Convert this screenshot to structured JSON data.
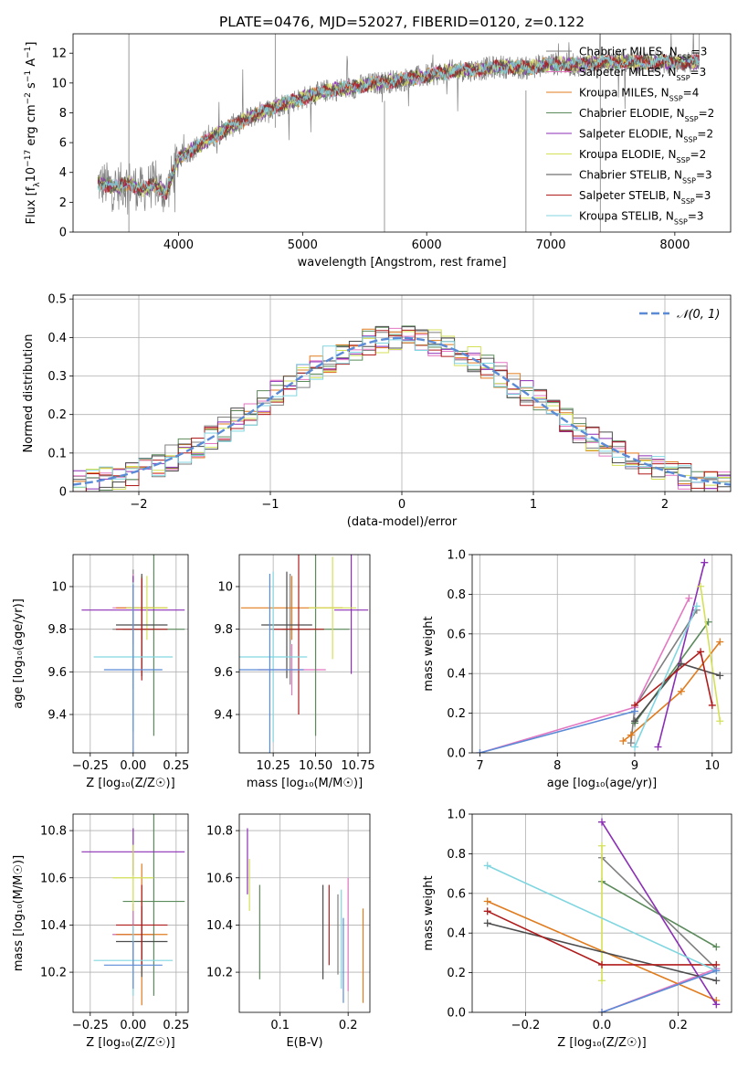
{
  "title": "PLATE=0476, MJD=52027, FIBERID=0120, z=0.122",
  "colors": {
    "chabrier_miles": "#7f7f7f",
    "salpeter_miles": "#e377c2",
    "kroupa_miles": "#e07b1e",
    "chabrier_elodie": "#5b8a5b",
    "salpeter_elodie": "#8b2fb5",
    "kroupa_elodie": "#d4e157",
    "chabrier_stelib": "#4d4d4d",
    "salpeter_stelib": "#b01c1c",
    "kroupa_stelib": "#80d6e0",
    "normal": "#5b8bd6",
    "data": "#808080"
  },
  "chart_data": [
    {
      "id": "spectrum",
      "type": "line",
      "title": "PLATE=0476, MJD=52027, FIBERID=0120, z=0.122",
      "xlabel": "wavelength [Angstrom, rest frame]",
      "ylabel_prefix": "Flux [f",
      "ylabel_mid": "10",
      "ylabel_rest": " erg cm",
      "ylabel_s": " s",
      "ylabel_a": " A",
      "ylabel_end": "]",
      "ylabel_sub": "λ",
      "ylabel_sup1": "−17",
      "ylabel_sup2": "−2",
      "ylabel_sup3": "−1",
      "ylabel_sup4": "−1",
      "xlim": [
        3150,
        8450
      ],
      "ylim": [
        0,
        13.3
      ],
      "xticks": [
        4000,
        5000,
        6000,
        7000,
        8000
      ],
      "yticks": [
        0,
        2,
        4,
        6,
        8,
        10,
        12
      ],
      "grid": false,
      "legend_position": "top-right",
      "legend": [
        {
          "label": "Chabrier MILES, N",
          "sub": "SSP",
          "value": "=3",
          "color": "#7f7f7f"
        },
        {
          "label": "Salpeter MILES, N",
          "sub": "SSP",
          "value": "=3",
          "color": "#e377c2"
        },
        {
          "label": "Kroupa MILES, N",
          "sub": "SSP",
          "value": "=4",
          "color": "#e07b1e"
        },
        {
          "label": "Chabrier ELODIE, N",
          "sub": "SSP",
          "value": "=2",
          "color": "#5b8a5b"
        },
        {
          "label": "Salpeter ELODIE, N",
          "sub": "SSP",
          "value": "=2",
          "color": "#8b2fb5"
        },
        {
          "label": "Kroupa ELODIE, N",
          "sub": "SSP",
          "value": "=2",
          "color": "#d4e157"
        },
        {
          "label": "Chabrier STELIB, N",
          "sub": "SSP",
          "value": "=3",
          "color": "#4d4d4d"
        },
        {
          "label": "Salpeter STELIB, N",
          "sub": "SSP",
          "value": "=3",
          "color": "#b01c1c"
        },
        {
          "label": "Kroupa STELIB, N",
          "sub": "SSP",
          "value": "=3",
          "color": "#80d6e0"
        }
      ],
      "continuum": {
        "x": [
          3350,
          3500,
          3600,
          3700,
          3800,
          3900,
          4000,
          4200,
          4400,
          4600,
          4800,
          5000,
          5200,
          5400,
          5600,
          5800,
          6000,
          6200,
          6400,
          6600,
          6800,
          7000,
          7200,
          7400
        ],
        "y": [
          3.3,
          3.0,
          3.3,
          2.8,
          3.2,
          2.6,
          5.0,
          6.0,
          7.0,
          7.8,
          8.5,
          9.0,
          9.5,
          9.7,
          10.0,
          10.2,
          10.5,
          10.8,
          10.9,
          11.1,
          11.0,
          11.3,
          11.2,
          11.4
        ]
      },
      "data_extent": [
        3350,
        8200
      ],
      "spikes": [
        {
          "x": 3600,
          "y1": 0,
          "y2": 13.3
        },
        {
          "x": 4780,
          "y1": 7.0,
          "y2": 13.3
        },
        {
          "x": 5660,
          "y1": 0,
          "y2": 8.8
        },
        {
          "x": 6800,
          "y1": 0,
          "y2": 9.5
        },
        {
          "x": 7400,
          "y1": 0,
          "y2": 11.0
        }
      ]
    },
    {
      "id": "residuals",
      "type": "bar",
      "xlabel": "(data-model)/error",
      "ylabel": "Normed distribution",
      "xlim": [
        -2.5,
        2.5
      ],
      "ylim": [
        0,
        0.51
      ],
      "xticks": [
        -2,
        -1,
        0,
        1,
        2
      ],
      "yticks": [
        0.0,
        0.1,
        0.2,
        0.3,
        0.4,
        0.5
      ],
      "grid": true,
      "legend_position": "top-right",
      "legend": [
        {
          "label": "𝒩(0, 1)",
          "color": "#5b8bd6"
        }
      ],
      "bin_width": 0.1
    },
    {
      "id": "age_vs_Z",
      "type": "scatter",
      "xlabel": "Z [log₁₀(Z/Z☉)]",
      "ylabel": "age  [log₁₀(age/yr)]",
      "xlim": [
        -0.35,
        0.32
      ],
      "ylim": [
        9.22,
        10.15
      ],
      "xticks": [
        -0.25,
        0.0,
        0.25
      ],
      "xticklabels": [
        "−0.25",
        "0.00",
        "0.25"
      ],
      "yticks": [
        9.4,
        9.6,
        9.8,
        10.0
      ],
      "grid": true,
      "points": [
        {
          "x": 0.0,
          "y": 9.8,
          "xerr": 0.12,
          "yerr": 0.28,
          "color": "#7f7f7f"
        },
        {
          "x": 0.0,
          "y": 9.9,
          "xerr": 0.12,
          "yerr": 0.16,
          "color": "#e377c2"
        },
        {
          "x": 0.05,
          "y": 9.9,
          "xerr": 0.15,
          "yerr": 0.15,
          "color": "#e07b1e"
        },
        {
          "x": 0.12,
          "y": 9.8,
          "xerr": 0.18,
          "yerr": 0.5,
          "color": "#5b8a5b"
        },
        {
          "x": 0.0,
          "y": 9.89,
          "xerr": 0.3,
          "yerr": 0.16,
          "color": "#8b2fb5"
        },
        {
          "x": 0.08,
          "y": 9.9,
          "xerr": 0.12,
          "yerr": 0.15,
          "color": "#d4e157"
        },
        {
          "x": 0.05,
          "y": 9.82,
          "xerr": 0.15,
          "yerr": 0.24,
          "color": "#4d4d4d"
        },
        {
          "x": 0.05,
          "y": 9.8,
          "xerr": 0.15,
          "yerr": 0.24,
          "color": "#b01c1c"
        },
        {
          "x": 0.0,
          "y": 9.67,
          "xerr": 0.23,
          "yerr": 0.35,
          "color": "#80d6e0"
        },
        {
          "x": 0.0,
          "y": 9.61,
          "xerr": 0.17,
          "yerr": 0.4,
          "color": "#5b8bd6"
        }
      ]
    },
    {
      "id": "age_vs_mass",
      "type": "scatter",
      "xlabel": "mass [log₁₀(M/M☉)]",
      "xlim": [
        10.05,
        10.82
      ],
      "ylim": [
        9.22,
        10.15
      ],
      "xticks": [
        10.25,
        10.5,
        10.75
      ],
      "xticklabels": [
        "10.25",
        "10.50",
        "10.75"
      ],
      "yticks": [
        9.4,
        9.6,
        9.8,
        10.0
      ],
      "grid": true,
      "points": [
        {
          "x": 10.35,
          "y": 9.8,
          "xerr": 0.12,
          "yerr": 0.26,
          "color": "#7f7f7f"
        },
        {
          "x": 10.36,
          "y": 9.61,
          "xerr": 0.2,
          "yerr": 0.12,
          "color": "#e377c2"
        },
        {
          "x": 10.36,
          "y": 9.9,
          "xerr": 0.3,
          "yerr": 0.15,
          "color": "#e07b1e"
        },
        {
          "x": 10.5,
          "y": 9.8,
          "xerr": 0.2,
          "yerr": 0.5,
          "color": "#5b8a5b"
        },
        {
          "x": 10.71,
          "y": 9.89,
          "xerr": 0.1,
          "yerr": 0.3,
          "color": "#8b2fb5"
        },
        {
          "x": 10.6,
          "y": 9.9,
          "xerr": 0.14,
          "yerr": 0.24,
          "color": "#d4e157"
        },
        {
          "x": 10.33,
          "y": 9.82,
          "xerr": 0.15,
          "yerr": 0.25,
          "color": "#4d4d4d"
        },
        {
          "x": 10.4,
          "y": 9.8,
          "xerr": 0.15,
          "yerr": 0.4,
          "color": "#b01c1c"
        },
        {
          "x": 10.25,
          "y": 9.67,
          "xerr": 0.2,
          "yerr": 0.4,
          "color": "#80d6e0"
        },
        {
          "x": 10.23,
          "y": 9.61,
          "xerr": 0.2,
          "yerr": 0.45,
          "color": "#5b8bd6"
        }
      ]
    },
    {
      "id": "weight_vs_age",
      "type": "line",
      "xlabel": "age  [log₁₀(age/yr)]",
      "ylabel": "mass weight",
      "xlim": [
        6.9,
        10.25
      ],
      "ylim": [
        0,
        1.0
      ],
      "xticks": [
        7,
        8,
        9,
        10
      ],
      "yticks": [
        0.0,
        0.2,
        0.4,
        0.6,
        0.8,
        1.0
      ],
      "yticklabels": [
        "0.0",
        "0.2",
        "0.4",
        "0.6",
        "0.8",
        "1.0"
      ],
      "grid": true,
      "series": [
        {
          "x": [
            8.95,
            9.0,
            9.8
          ],
          "y": [
            0.05,
            0.23,
            0.72
          ],
          "color": "#7f7f7f"
        },
        {
          "x": [
            7.0,
            9.0,
            9.7
          ],
          "y": [
            0.0,
            0.23,
            0.78
          ],
          "color": "#e377c2"
        },
        {
          "x": [
            8.85,
            8.95,
            9.6,
            10.1
          ],
          "y": [
            0.06,
            0.09,
            0.31,
            0.56
          ],
          "color": "#e07b1e"
        },
        {
          "x": [
            9.0,
            9.95
          ],
          "y": [
            0.15,
            0.66
          ],
          "color": "#5b8a5b"
        },
        {
          "x": [
            9.3,
            9.9
          ],
          "y": [
            0.03,
            0.96
          ],
          "color": "#8b2fb5"
        },
        {
          "x": [
            9.85,
            10.1
          ],
          "y": [
            0.84,
            0.16
          ],
          "color": "#d4e157"
        },
        {
          "x": [
            9.0,
            9.6,
            10.1
          ],
          "y": [
            0.16,
            0.45,
            0.39
          ],
          "color": "#4d4d4d"
        },
        {
          "x": [
            9.0,
            9.85,
            10.0
          ],
          "y": [
            0.24,
            0.51,
            0.24
          ],
          "color": "#b01c1c"
        },
        {
          "x": [
            9.0,
            9.8
          ],
          "y": [
            0.03,
            0.74
          ],
          "color": "#80d6e0"
        },
        {
          "x": [
            7.0,
            9.0
          ],
          "y": [
            0.0,
            0.21
          ],
          "color": "#5b8bd6"
        }
      ]
    },
    {
      "id": "mass_vs_Z",
      "type": "scatter",
      "xlabel": "Z [log₁₀(Z/Z☉)]",
      "ylabel": "mass [log₁₀(M/M☉)]",
      "xlim": [
        -0.35,
        0.32
      ],
      "ylim": [
        10.03,
        10.87
      ],
      "xticks": [
        -0.25,
        0.0,
        0.25
      ],
      "xticklabels": [
        "−0.25",
        "0.00",
        "0.25"
      ],
      "yticks": [
        10.2,
        10.4,
        10.6,
        10.8
      ],
      "grid": true,
      "points": [
        {
          "x": 0.0,
          "y": 10.36,
          "xerr": 0.12,
          "yerr": 0.13,
          "color": "#7f7f7f"
        },
        {
          "x": 0.0,
          "y": 10.36,
          "xerr": 0.12,
          "yerr": 0.13,
          "color": "#e377c2"
        },
        {
          "x": 0.05,
          "y": 10.36,
          "xerr": 0.15,
          "yerr": 0.3,
          "color": "#e07b1e"
        },
        {
          "x": 0.12,
          "y": 10.5,
          "xerr": 0.18,
          "yerr": 0.4,
          "color": "#5b8a5b"
        },
        {
          "x": 0.0,
          "y": 10.71,
          "xerr": 0.3,
          "yerr": 0.1,
          "color": "#8b2fb5"
        },
        {
          "x": 0.0,
          "y": 10.6,
          "xerr": 0.12,
          "yerr": 0.14,
          "color": "#d4e157"
        },
        {
          "x": 0.05,
          "y": 10.33,
          "xerr": 0.15,
          "yerr": 0.15,
          "color": "#4d4d4d"
        },
        {
          "x": 0.05,
          "y": 10.4,
          "xerr": 0.15,
          "yerr": 0.17,
          "color": "#b01c1c"
        },
        {
          "x": 0.0,
          "y": 10.25,
          "xerr": 0.23,
          "yerr": 0.15,
          "color": "#80d6e0"
        },
        {
          "x": 0.0,
          "y": 10.23,
          "xerr": 0.17,
          "yerr": 0.1,
          "color": "#5b8bd6"
        }
      ]
    },
    {
      "id": "mass_vs_ebv",
      "type": "scatter",
      "xlabel": "E(B-V)",
      "xlim": [
        0.04,
        0.232
      ],
      "ylim": [
        10.03,
        10.87
      ],
      "xticks": [
        0.1,
        0.2
      ],
      "xticklabels": [
        "0.1",
        "0.2"
      ],
      "yticks": [
        10.2,
        10.4,
        10.6,
        10.8
      ],
      "grid": true,
      "points": [
        {
          "x": 0.185,
          "y": 10.36,
          "yerr": 0.17,
          "color": "#7f7f7f"
        },
        {
          "x": 0.2,
          "y": 10.36,
          "yerr": 0.24,
          "color": "#e377c2"
        },
        {
          "x": 0.222,
          "y": 10.27,
          "yerr": 0.2,
          "color": "#e07b1e"
        },
        {
          "x": 0.07,
          "y": 10.37,
          "yerr": 0.2,
          "color": "#5b8a5b"
        },
        {
          "x": 0.052,
          "y": 10.67,
          "yerr": 0.14,
          "color": "#8b2fb5"
        },
        {
          "x": 0.055,
          "y": 10.57,
          "yerr": 0.11,
          "color": "#d4e157"
        },
        {
          "x": 0.163,
          "y": 10.37,
          "yerr": 0.2,
          "color": "#4d4d4d"
        },
        {
          "x": 0.172,
          "y": 10.4,
          "yerr": 0.17,
          "color": "#b01c1c"
        },
        {
          "x": 0.19,
          "y": 10.34,
          "yerr": 0.21,
          "color": "#80d6e0"
        },
        {
          "x": 0.193,
          "y": 10.25,
          "yerr": 0.18,
          "color": "#5b8bd6"
        }
      ]
    },
    {
      "id": "weight_vs_Z",
      "type": "line",
      "xlabel": "Z [log₁₀(Z/Z☉)]",
      "ylabel": "mass weight",
      "xlim": [
        -0.34,
        0.34
      ],
      "ylim": [
        0,
        1.0
      ],
      "xticks": [
        -0.2,
        0.0,
        0.2
      ],
      "xticklabels": [
        "−0.2",
        "0.0",
        "0.2"
      ],
      "yticks": [
        0.0,
        0.2,
        0.4,
        0.6,
        0.8,
        1.0
      ],
      "yticklabels": [
        "0.0",
        "0.2",
        "0.4",
        "0.6",
        "0.8",
        "1.0"
      ],
      "grid": true,
      "series": [
        {
          "x": [
            0.0,
            0.3
          ],
          "y": [
            0.78,
            0.22
          ],
          "color": "#7f7f7f"
        },
        {
          "x": [
            0.0,
            0.3
          ],
          "y": [
            0.0,
            0.22
          ],
          "color": "#e377c2"
        },
        {
          "x": [
            -0.3,
            0.3
          ],
          "y": [
            0.56,
            0.06
          ],
          "color": "#e07b1e"
        },
        {
          "x": [
            0.0,
            0.3
          ],
          "y": [
            0.66,
            0.33
          ],
          "color": "#5b8a5b"
        },
        {
          "x": [
            0.0,
            0.3
          ],
          "y": [
            0.96,
            0.04
          ],
          "color": "#8b2fb5"
        },
        {
          "x": [
            0.0,
            0.0
          ],
          "y": [
            0.84,
            0.16
          ],
          "color": "#d4e157"
        },
        {
          "x": [
            -0.3,
            0.3
          ],
          "y": [
            0.45,
            0.16
          ],
          "color": "#4d4d4d"
        },
        {
          "x": [
            -0.3,
            0.0,
            0.3
          ],
          "y": [
            0.51,
            0.24,
            0.24
          ],
          "color": "#b01c1c"
        },
        {
          "x": [
            -0.3,
            0.3
          ],
          "y": [
            0.74,
            0.21
          ],
          "color": "#80d6e0"
        },
        {
          "x": [
            0.0,
            0.3
          ],
          "y": [
            0.0,
            0.21
          ],
          "color": "#5b8bd6"
        }
      ]
    }
  ]
}
